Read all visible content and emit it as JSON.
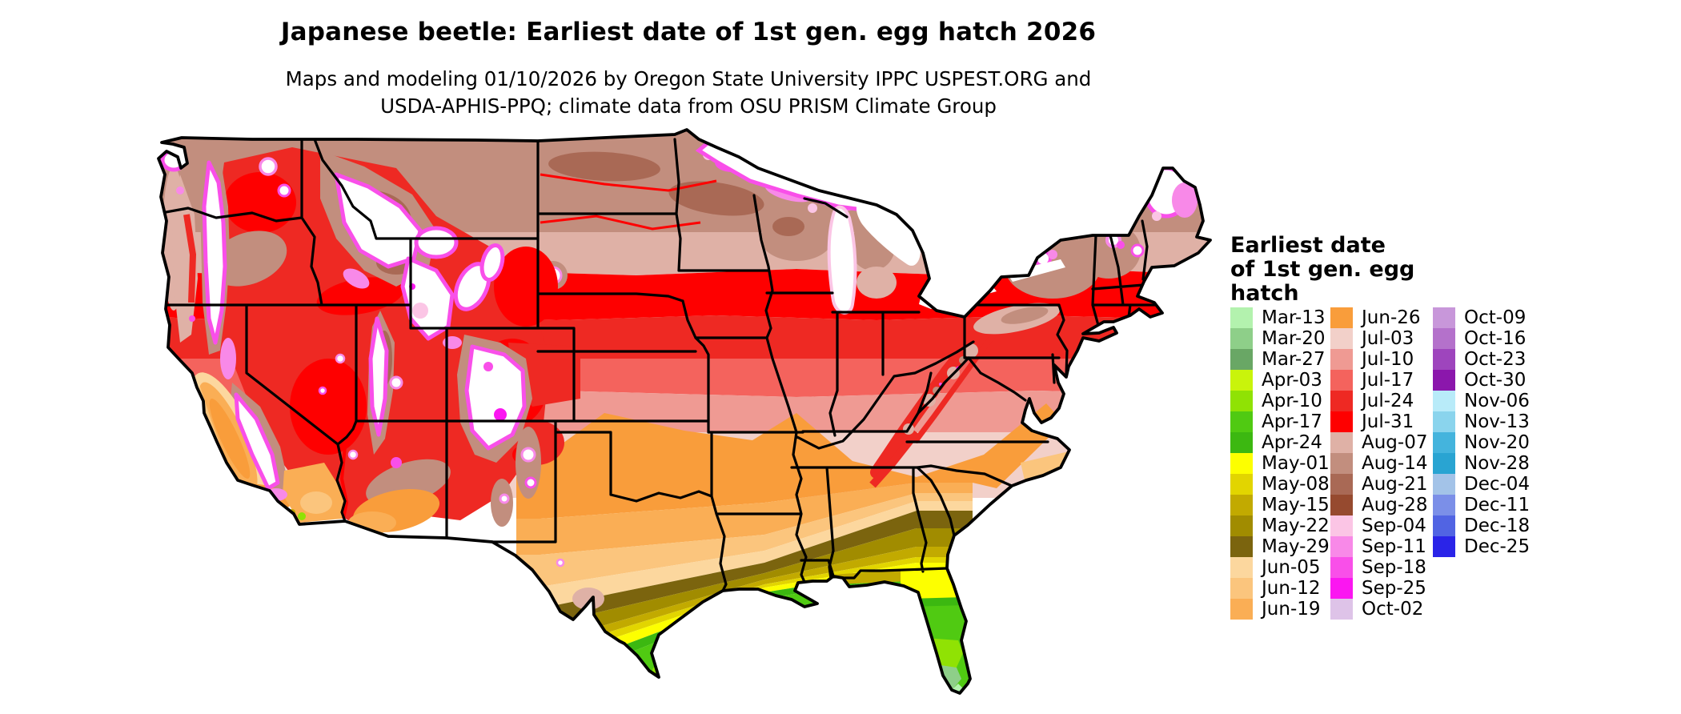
{
  "title": "Japanese beetle: Earliest date of 1st gen. egg hatch 2026",
  "subtitle_line1": "Maps and modeling 01/10/2026 by Oregon State University IPPC USPEST.ORG and",
  "subtitle_line2": "USDA-APHIS-PPQ; climate data from OSU PRISM Climate Group",
  "legend": {
    "title_lines": [
      "Earliest date",
      "of 1st gen. egg",
      "hatch"
    ],
    "columns": [
      [
        {
          "label": "Mar-13",
          "color": "#b3f2ae"
        },
        {
          "label": "Mar-20",
          "color": "#8ecf89"
        },
        {
          "label": "Mar-27",
          "color": "#69a765"
        },
        {
          "label": "Apr-03",
          "color": "#c9f40b"
        },
        {
          "label": "Apr-10",
          "color": "#90e204"
        },
        {
          "label": "Apr-17",
          "color": "#50ca12"
        },
        {
          "label": "Apr-24",
          "color": "#3cb811"
        },
        {
          "label": "May-01",
          "color": "#fdff00"
        },
        {
          "label": "May-08",
          "color": "#e2d500"
        },
        {
          "label": "May-15",
          "color": "#c2aa00"
        },
        {
          "label": "May-22",
          "color": "#a18c00"
        },
        {
          "label": "May-29",
          "color": "#7b640e"
        },
        {
          "label": "Jun-05",
          "color": "#fcd79e"
        },
        {
          "label": "Jun-12",
          "color": "#fbc57d"
        },
        {
          "label": "Jun-19",
          "color": "#faae55"
        }
      ],
      [
        {
          "label": "Jun-26",
          "color": "#f99d3b"
        },
        {
          "label": "Jul-03",
          "color": "#f2d0c9"
        },
        {
          "label": "Jul-10",
          "color": "#ef9a93"
        },
        {
          "label": "Jul-17",
          "color": "#f4635d"
        },
        {
          "label": "Jul-24",
          "color": "#ee2923"
        },
        {
          "label": "Jul-31",
          "color": "#fe0000"
        },
        {
          "label": "Aug-07",
          "color": "#dfb1a6"
        },
        {
          "label": "Aug-14",
          "color": "#c28e7e"
        },
        {
          "label": "Aug-21",
          "color": "#a96955"
        },
        {
          "label": "Aug-28",
          "color": "#964a2f"
        },
        {
          "label": "Sep-04",
          "color": "#fbc5e5"
        },
        {
          "label": "Sep-11",
          "color": "#f889e8"
        },
        {
          "label": "Sep-18",
          "color": "#f94fe9"
        },
        {
          "label": "Sep-25",
          "color": "#fb16f1"
        },
        {
          "label": "Oct-02",
          "color": "#dec3e8"
        }
      ],
      [
        {
          "label": "Oct-09",
          "color": "#c897da"
        },
        {
          "label": "Oct-16",
          "color": "#b471cb"
        },
        {
          "label": "Oct-23",
          "color": "#9e45bd"
        },
        {
          "label": "Oct-30",
          "color": "#8b17ac"
        },
        {
          "label": "Nov-06",
          "color": "#b8ebf9"
        },
        {
          "label": "Nov-13",
          "color": "#8ad4ed"
        },
        {
          "label": "Nov-20",
          "color": "#44b4dd"
        },
        {
          "label": "Nov-28",
          "color": "#29a4d2"
        },
        {
          "label": "Dec-04",
          "color": "#a3c3e8"
        },
        {
          "label": "Dec-11",
          "color": "#7b8fe8"
        },
        {
          "label": "Dec-18",
          "color": "#5164e3"
        },
        {
          "label": "Dec-25",
          "color": "#2a24e8"
        }
      ]
    ]
  },
  "map": {
    "background": "#ffffff",
    "border_color": "#000000",
    "no_data_color": "#ffffff"
  }
}
